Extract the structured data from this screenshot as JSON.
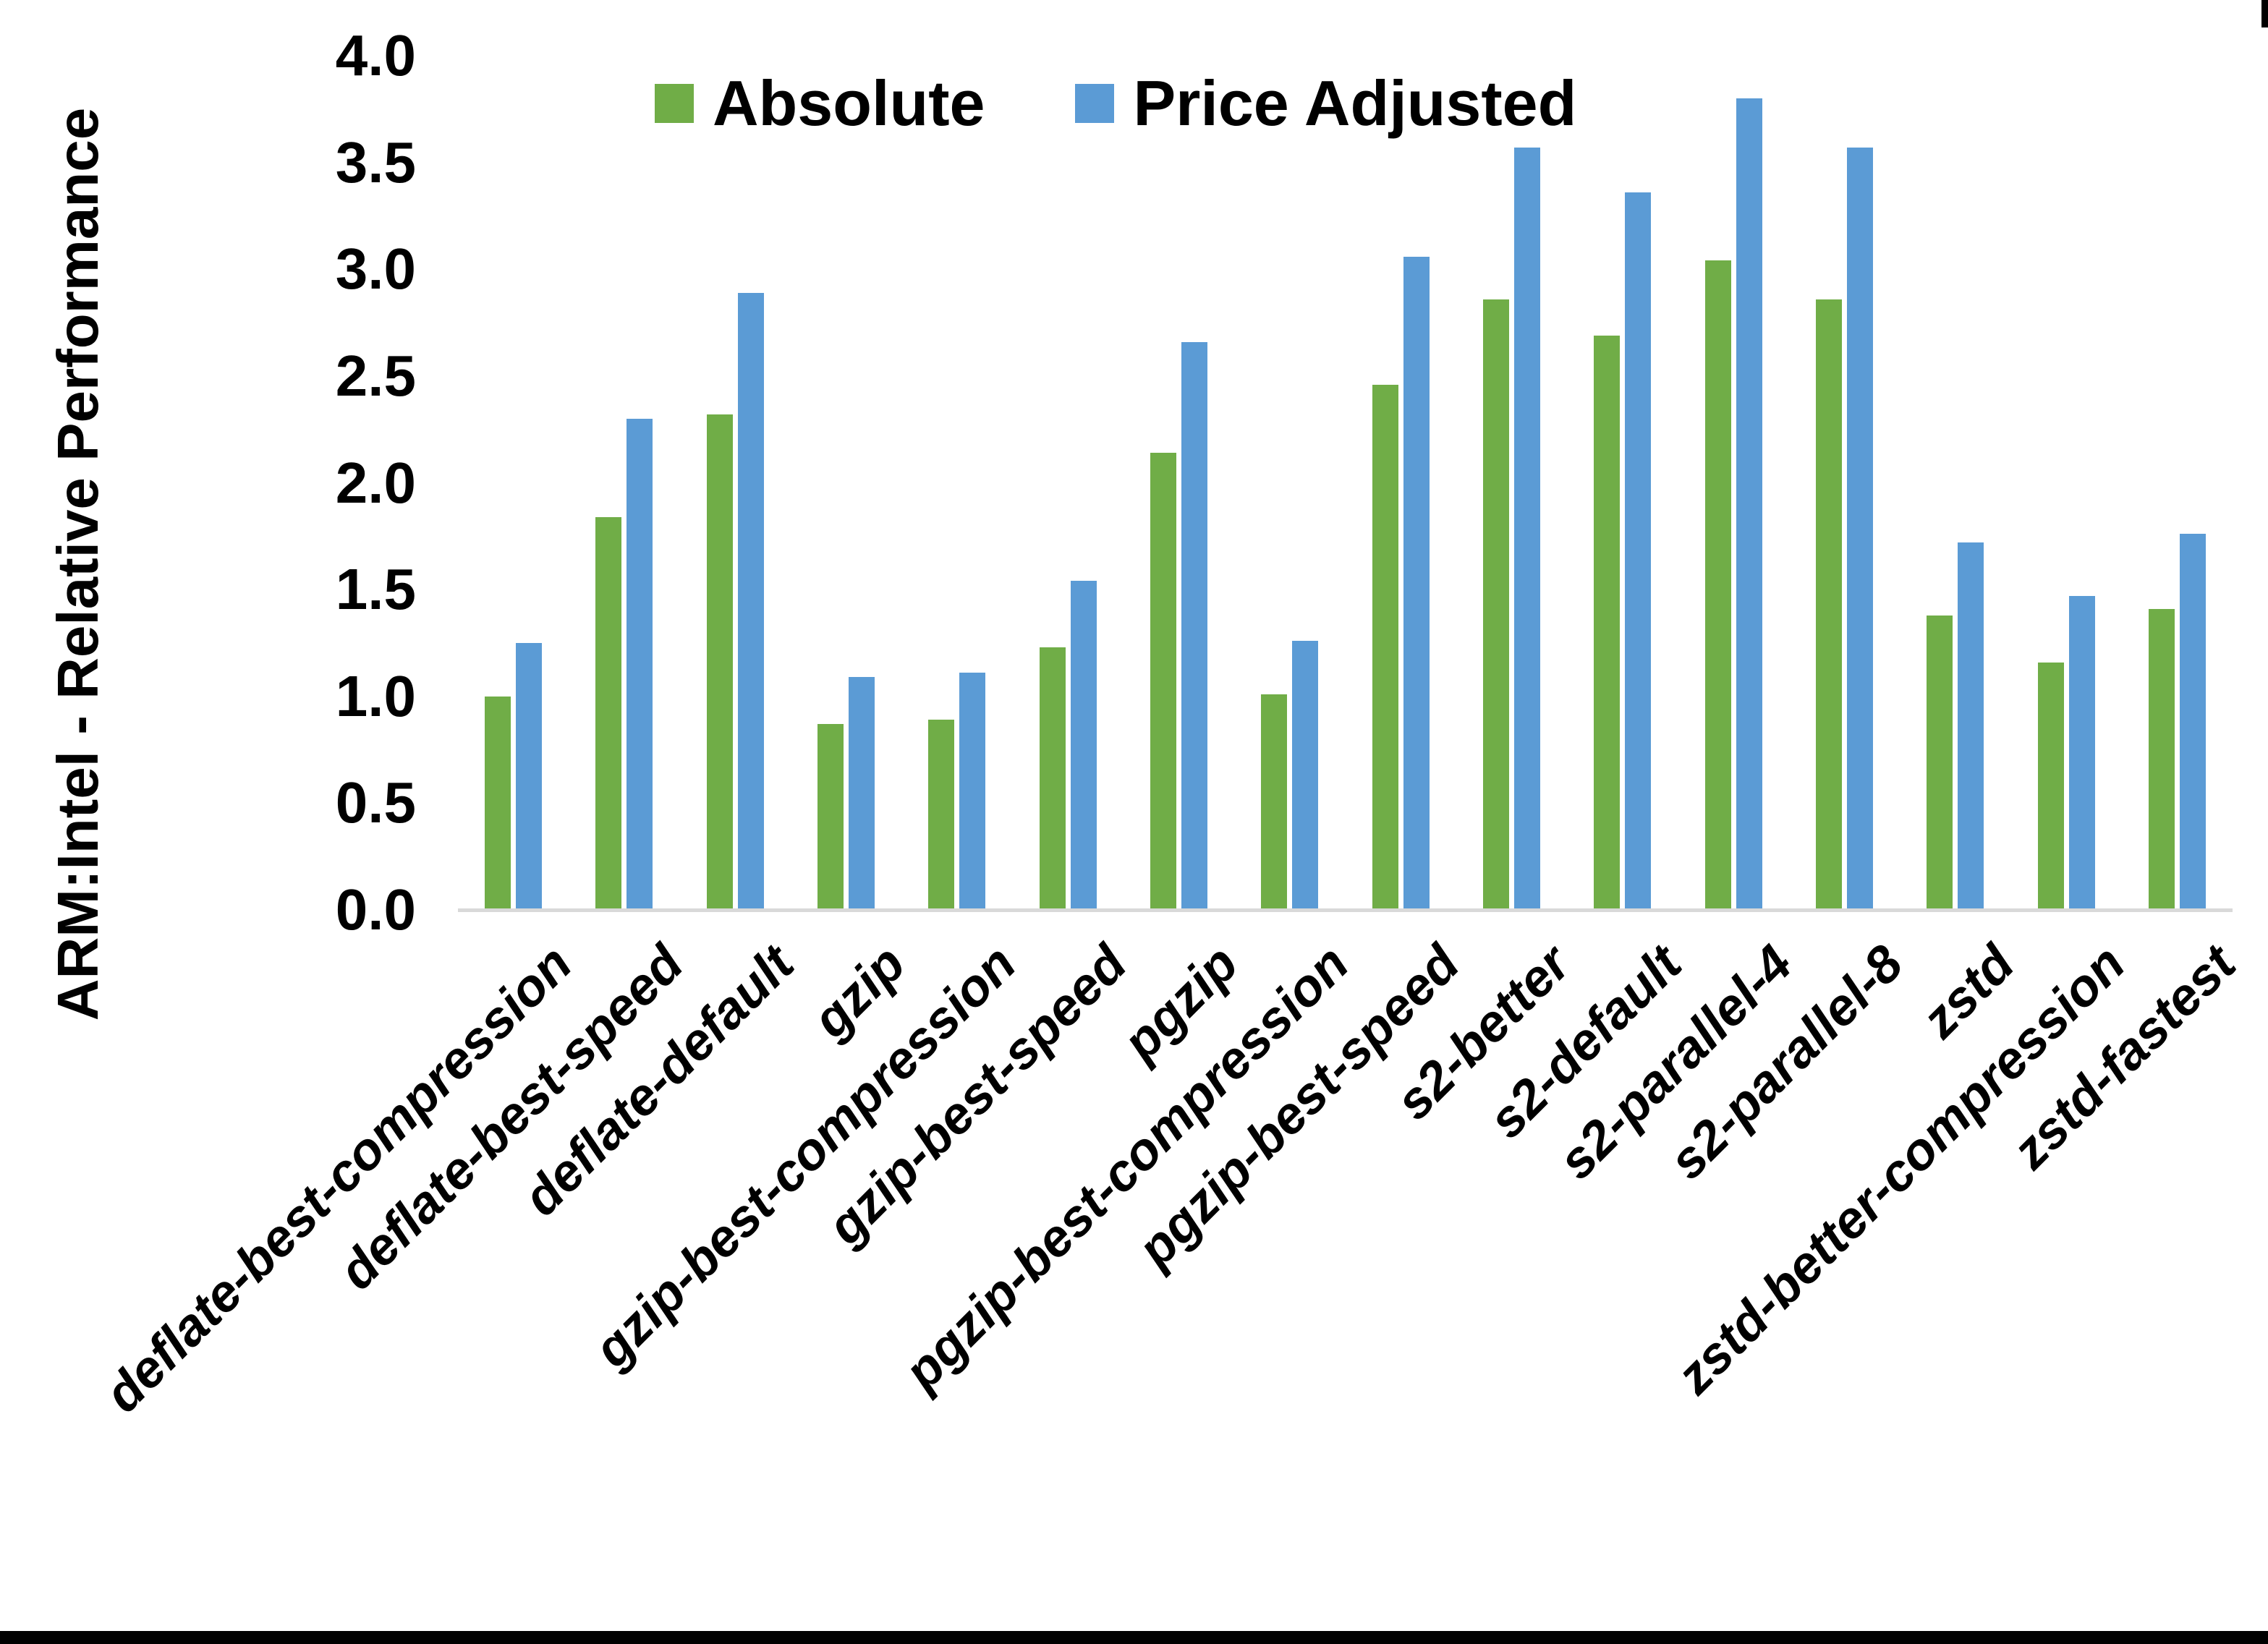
{
  "chart_data": {
    "type": "bar",
    "title": "",
    "xlabel": "",
    "ylabel": "ARM:Intel - Relative Performance",
    "ylim": [
      0.0,
      4.0
    ],
    "ytick_step": 0.5,
    "ytick_labels": [
      "0.0",
      "0.5",
      "1.0",
      "1.5",
      "2.0",
      "2.5",
      "3.0",
      "3.5",
      "4.0"
    ],
    "grid": false,
    "legend_position": "top-center",
    "categories": [
      "deflate-best-compression",
      "deflate-best-speed",
      "deflate-default",
      "gzip",
      "gzip-best-compression",
      "gzip-best-speed",
      "pgzip",
      "pgzip-best-compression",
      "pgzip-best-speed",
      "s2-better",
      "s2-default",
      "s2-parallel-4",
      "s2-parallel-8",
      "zstd",
      "zstd-better-compression",
      "zstd-fastest"
    ],
    "series": [
      {
        "name": "Absolute",
        "color": "#70AD47",
        "values": [
          1.0,
          1.84,
          2.32,
          0.87,
          0.89,
          1.23,
          2.14,
          1.01,
          2.46,
          2.86,
          2.69,
          3.04,
          2.86,
          1.38,
          1.16,
          1.41
        ]
      },
      {
        "name": "Price Adjusted",
        "color": "#5B9BD5",
        "values": [
          1.25,
          2.3,
          2.89,
          1.09,
          1.11,
          1.54,
          2.66,
          1.26,
          3.06,
          3.57,
          3.36,
          3.8,
          3.57,
          1.72,
          1.47,
          1.76
        ]
      }
    ],
    "colors": {
      "axis_line": "#d9d9d9",
      "text": "#000000",
      "background": "#ffffff",
      "border": "#000000"
    }
  }
}
